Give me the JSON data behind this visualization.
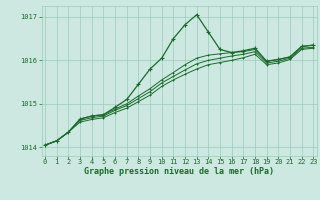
{
  "bg_color": "#cce8e0",
  "grid_color": "#99ccbb",
  "line_color": "#1a6b2a",
  "xlabel": "Graphe pression niveau de la mer (hPa)",
  "ylim": [
    1013.8,
    1017.25
  ],
  "xlim": [
    -0.3,
    23.3
  ],
  "yticks": [
    1014,
    1015,
    1016,
    1017
  ],
  "xticks": [
    0,
    1,
    2,
    3,
    4,
    5,
    6,
    7,
    8,
    9,
    10,
    11,
    12,
    13,
    14,
    15,
    16,
    17,
    18,
    19,
    20,
    21,
    22,
    23
  ],
  "line1": [
    1014.05,
    1014.15,
    1014.35,
    1014.65,
    1014.72,
    1014.75,
    1014.92,
    1015.1,
    1015.45,
    1015.8,
    1016.05,
    1016.5,
    1016.82,
    1017.05,
    1016.65,
    1016.25,
    1016.18,
    1016.22,
    1016.28,
    1015.98,
    1016.02,
    1016.08,
    1016.32,
    1016.35
  ],
  "line2": [
    1014.05,
    1014.15,
    1014.35,
    1014.65,
    1014.72,
    1014.75,
    1014.88,
    1015.0,
    1015.18,
    1015.35,
    1015.55,
    1015.72,
    1015.9,
    1016.05,
    1016.12,
    1016.15,
    1016.18,
    1016.2,
    1016.25,
    1015.98,
    1016.02,
    1016.08,
    1016.32,
    1016.35
  ],
  "line3": [
    1014.05,
    1014.15,
    1014.35,
    1014.62,
    1014.68,
    1014.72,
    1014.85,
    1014.96,
    1015.12,
    1015.28,
    1015.48,
    1015.63,
    1015.78,
    1015.92,
    1016.0,
    1016.05,
    1016.1,
    1016.14,
    1016.2,
    1015.94,
    1015.98,
    1016.05,
    1016.28,
    1016.3
  ],
  "line4": [
    1014.05,
    1014.15,
    1014.35,
    1014.58,
    1014.64,
    1014.68,
    1014.8,
    1014.9,
    1015.05,
    1015.2,
    1015.4,
    1015.55,
    1015.68,
    1015.8,
    1015.9,
    1015.95,
    1016.0,
    1016.06,
    1016.14,
    1015.9,
    1015.94,
    1016.02,
    1016.25,
    1016.28
  ]
}
